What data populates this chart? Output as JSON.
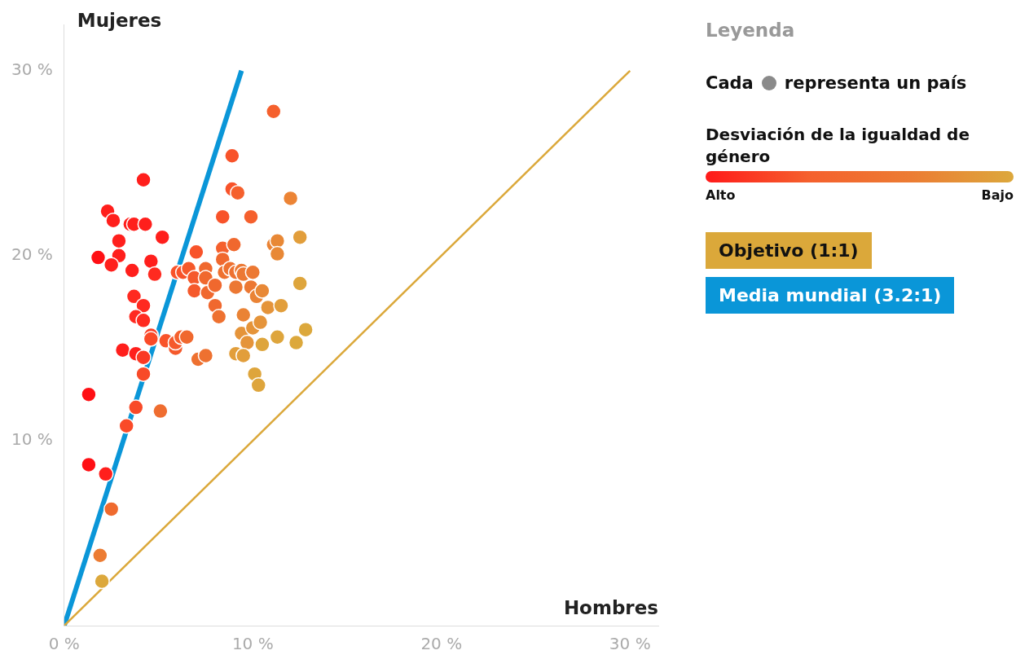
{
  "chart_data": {
    "type": "scatter",
    "xlabel": "Hombres",
    "ylabel": "Mujeres",
    "legend_title": "Leyenda",
    "legend": "right",
    "marker": "circle",
    "grid": false,
    "annotations": [
      "Cada",
      "representa un país",
      "Desviación de la igualdad de género",
      "Alto",
      "Bajo"
    ],
    "xlim": [
      0,
      31.5
    ],
    "ylim": [
      0,
      32.5
    ],
    "xticks": [
      {
        "value": 0,
        "label": "0 %"
      },
      {
        "value": 10,
        "label": "10 %"
      },
      {
        "value": 20,
        "label": "20 %"
      },
      {
        "value": 30,
        "label": "30 %"
      }
    ],
    "yticks": [
      {
        "value": 10,
        "label": "10 %"
      },
      {
        "value": 20,
        "label": "20 %"
      },
      {
        "value": 30,
        "label": "30 %"
      }
    ],
    "series": [
      {
        "type": "line",
        "name": "Objetivo (1:1)",
        "color": "#dba83a",
        "x": [
          0,
          30
        ],
        "values": [
          0,
          30
        ],
        "marker": "none"
      },
      {
        "type": "line",
        "name": "Media mundial (3.2:1)",
        "color": "#0a96d8",
        "x": [
          0,
          9.4
        ],
        "values": [
          0,
          30
        ],
        "marker": "none"
      },
      {
        "x": [
          1.3,
          1.3,
          2.2,
          2.5,
          1.9,
          2.0,
          3.3,
          3.8,
          5.1,
          4.2,
          3.1,
          3.8,
          4.2,
          4.6,
          4.6,
          5.4,
          5.9,
          5.9,
          6.2,
          6.5,
          4.2,
          2.3,
          2.6,
          3.5,
          3.7,
          4.3,
          5.2,
          2.9,
          1.8,
          2.9,
          2.5,
          3.6,
          4.6,
          4.8,
          3.7,
          4.2,
          3.8,
          4.2,
          6.0,
          6.3,
          6.6,
          7.0,
          6.9,
          6.9,
          7.5,
          7.5,
          7.6,
          8.0,
          8.0,
          8.2,
          7.1,
          7.5,
          8.4,
          8.4,
          8.4,
          8.5,
          8.9,
          8.9,
          9.2,
          9.0,
          8.8,
          9.1,
          9.4,
          9.5,
          9.1,
          9.9,
          10.0,
          9.9,
          10.2,
          10.5,
          9.5,
          9.4,
          9.7,
          10.0,
          10.4,
          9.1,
          9.5,
          10.8,
          11.5,
          10.5,
          11.3,
          10.1,
          10.3,
          11.1,
          12.0,
          11.1,
          11.3,
          11.3,
          12.5,
          12.5,
          12.8,
          12.3
        ],
        "values": [
          12.5,
          8.7,
          8.2,
          6.3,
          3.8,
          2.4,
          10.8,
          11.8,
          11.6,
          13.6,
          14.9,
          14.7,
          14.5,
          15.7,
          15.5,
          15.4,
          15.0,
          15.3,
          15.6,
          15.6,
          24.1,
          22.4,
          21.9,
          21.7,
          21.7,
          21.7,
          21.0,
          20.8,
          19.9,
          20.0,
          19.5,
          19.2,
          19.7,
          19.0,
          17.8,
          17.3,
          16.7,
          16.5,
          19.1,
          19.1,
          19.3,
          20.2,
          18.8,
          18.1,
          19.3,
          18.8,
          18.0,
          18.4,
          17.3,
          16.7,
          14.4,
          14.6,
          22.1,
          20.4,
          19.8,
          19.1,
          25.4,
          23.6,
          23.4,
          20.6,
          19.3,
          19.1,
          19.2,
          19.0,
          18.3,
          22.1,
          19.1,
          18.3,
          17.8,
          18.1,
          16.8,
          15.8,
          15.3,
          16.1,
          16.4,
          14.7,
          14.6,
          17.2,
          17.3,
          15.2,
          15.6,
          13.6,
          13.0,
          27.8,
          23.1,
          20.6,
          20.8,
          20.1,
          21.0,
          18.5,
          16.0,
          15.3
        ],
        "colors": [
          "#ff0f14",
          "#ff0f14",
          "#ff1f1c",
          "#ef6a2e",
          "#ec7c33",
          "#dca83c",
          "#fa4a28",
          "#f84a28",
          "#ef6d30",
          "#f84a28",
          "#ff1f1c",
          "#ff1f1c",
          "#fa3a24",
          "#fa3f26",
          "#fa4a28",
          "#f8532a",
          "#f5592b",
          "#f5592b",
          "#f5602d",
          "#f0682e",
          "#ff1f1c",
          "#ff1f1c",
          "#ff1f1c",
          "#ff1f1c",
          "#ff1f1c",
          "#ff1f1c",
          "#ff1f1c",
          "#ff1f1c",
          "#ff0f14",
          "#ff1f1c",
          "#ff1f1c",
          "#ff1f1c",
          "#ff1f1c",
          "#ff2a20",
          "#ff2a20",
          "#ff2a20",
          "#ff2a20",
          "#ff2a20",
          "#f8532a",
          "#f8532a",
          "#f5592b",
          "#f8532a",
          "#f5592b",
          "#f5592b",
          "#f0682e",
          "#f0682e",
          "#f0682e",
          "#f0682e",
          "#f0682e",
          "#ee7130",
          "#ee7130",
          "#ee7130",
          "#f8532a",
          "#f5602d",
          "#f0682e",
          "#ee7130",
          "#f8532a",
          "#f8532a",
          "#f5602d",
          "#f0682e",
          "#ee7130",
          "#ee7130",
          "#ec7833",
          "#ec7833",
          "#ec7833",
          "#f5602d",
          "#ec7833",
          "#ec7833",
          "#ea8335",
          "#e88836",
          "#ea8335",
          "#e5943a",
          "#e5943a",
          "#e5943a",
          "#e5943a",
          "#e29e3b",
          "#e29e3b",
          "#e5943a",
          "#e29e3b",
          "#dea53c",
          "#dea53c",
          "#dea53c",
          "#dea53c",
          "#f5602d",
          "#ec8435",
          "#ea8335",
          "#e88836",
          "#e88836",
          "#e29e3b",
          "#dea53c",
          "#dca83c",
          "#dca83c"
        ]
      }
    ]
  }
}
